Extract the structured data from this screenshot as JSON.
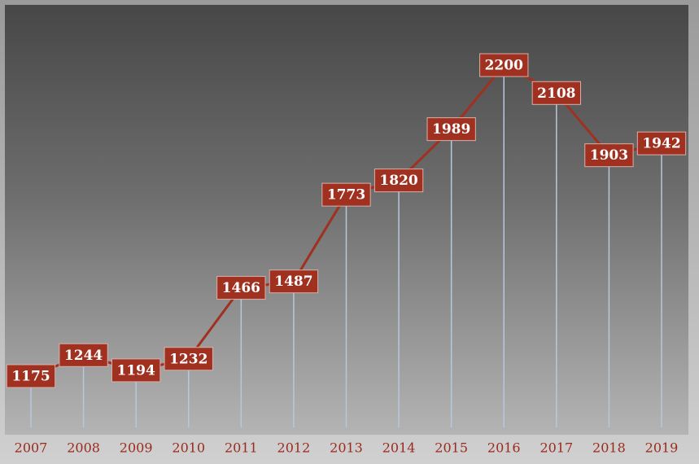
{
  "chart_data": {
    "type": "line",
    "categories": [
      "2007",
      "2008",
      "2009",
      "2010",
      "2011",
      "2012",
      "2013",
      "2014",
      "2015",
      "2016",
      "2017",
      "2018",
      "2019"
    ],
    "values": [
      1175,
      1244,
      1194,
      1232,
      1466,
      1487,
      1773,
      1820,
      1989,
      2200,
      2108,
      1903,
      1942
    ],
    "color": "#a0301f"
  }
}
